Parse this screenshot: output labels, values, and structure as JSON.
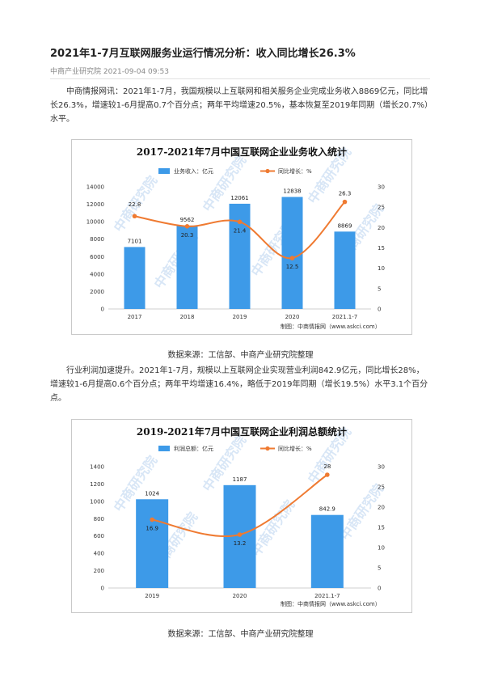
{
  "article": {
    "title": "2021年1-7月互联网服务业运行情况分析：收入同比增长26.3%",
    "meta": "中商产业研究院 2021-09-04 09:53",
    "paragraph1": "中商情报网讯：2021年1-7月，我国规模以上互联网和相关服务企业完成业务收入8869亿元，同比增长26.3%，增速较1-6月提高0.7个百分点；两年平均增速20.5%，基本恢复至2019年同期（增长20.7%）水平。",
    "caption1": "数据来源：工信部、中商产业研究院整理",
    "paragraph2": "行业利润加速提升。2021年1-7月，规模以上互联网企业实现营业利润842.9亿元，同比增长28%，增速较1-6月提高0.6个百分点；两年平均增速16.4%，略低于2019年同期（增长19.5%）水平3.1个百分点。",
    "caption2": "数据来源：工信部、中商产业研究院整理"
  },
  "colors": {
    "bar": "#3d9ae8",
    "line": "#ef7a31"
  },
  "chart_data": [
    {
      "type": "bar",
      "title": "2017-2021年7月中国互联网企业业务收入统计",
      "categories": [
        "2017",
        "2018",
        "2019",
        "2020",
        "2021.1-7"
      ],
      "series": [
        {
          "name": "业务收入：亿元",
          "axis": "left",
          "values": [
            7101,
            9562,
            12061,
            12838,
            8869
          ]
        },
        {
          "name": "同比增长：%",
          "axis": "right",
          "type": "line",
          "values": [
            22.8,
            20.3,
            21.4,
            12.5,
            26.3
          ]
        }
      ],
      "ylim": [
        0,
        14000
      ],
      "yticks": [
        "0",
        "2000",
        "4000",
        "6000",
        "8000",
        "10000",
        "12000",
        "14000"
      ],
      "y2lim": [
        0,
        30
      ],
      "y2ticks": [
        "0",
        "5",
        "10",
        "15",
        "20",
        "25",
        "30"
      ],
      "legend_position": "top",
      "grid": false,
      "source": "制图：中商情报网（www.askci.com）",
      "watermark": "中商研究院"
    },
    {
      "type": "bar",
      "title": "2019-2021年7月中国互联网企业利润总额统计",
      "categories": [
        "2019",
        "2020",
        "2021.1-7"
      ],
      "series": [
        {
          "name": "利润总额：亿元",
          "axis": "left",
          "values": [
            1024,
            1187,
            842.9
          ]
        },
        {
          "name": "同比增长：%",
          "axis": "right",
          "type": "line",
          "values": [
            16.9,
            13.2,
            28
          ]
        }
      ],
      "ylim": [
        0,
        1400
      ],
      "yticks": [
        "0",
        "200",
        "400",
        "600",
        "800",
        "1000",
        "1200",
        "1400"
      ],
      "y2lim": [
        0,
        30
      ],
      "y2ticks": [
        "0",
        "5",
        "10",
        "15",
        "20",
        "25",
        "30"
      ],
      "legend_position": "top",
      "grid": false,
      "source": "制图：中商情报网（www.askci.com）",
      "watermark": "中商研究院"
    }
  ]
}
